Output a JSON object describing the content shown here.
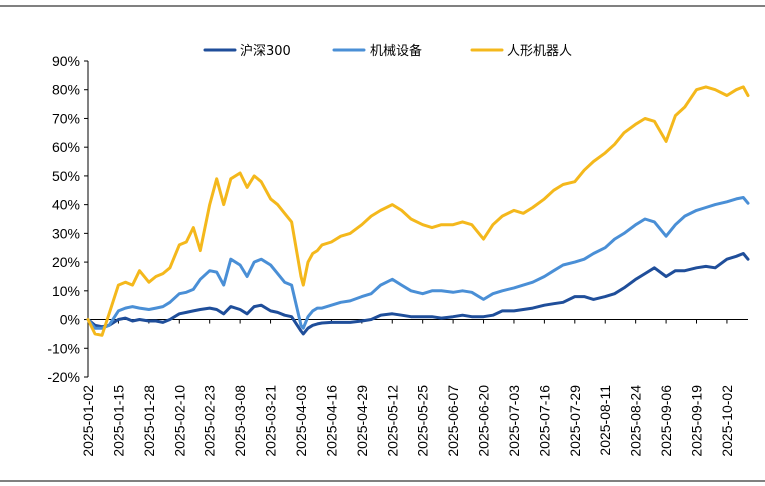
{
  "chart_data": {
    "type": "line",
    "ylim": [
      -20,
      90
    ],
    "y_ticks": [
      90,
      80,
      70,
      60,
      50,
      40,
      30,
      20,
      10,
      0,
      -10,
      -20
    ],
    "y_tick_labels": [
      "90%",
      "80%",
      "70%",
      "60%",
      "50%",
      "40%",
      "30%",
      "20%",
      "10%",
      "0%",
      "-10%",
      "-20%"
    ],
    "x_tick_labels": [
      "2025-01-02",
      "2025-01-15",
      "2025-01-28",
      "2025-02-10",
      "2025-02-23",
      "2025-03-08",
      "2025-03-21",
      "2025-04-03",
      "2025-04-16",
      "2025-04-29",
      "2025-05-12",
      "2025-05-25",
      "2025-06-07",
      "2025-06-20",
      "2025-07-03",
      "2025-07-16",
      "2025-07-29",
      "2025-08-11",
      "2025-08-24",
      "2025-09-06",
      "2025-09-19",
      "2025-10-02"
    ],
    "x_tick_days": [
      0,
      13,
      26,
      39,
      52,
      65,
      78,
      91,
      104,
      117,
      130,
      143,
      156,
      169,
      182,
      195,
      208,
      221,
      234,
      247,
      260,
      273
    ],
    "x_range_days": [
      0,
      282
    ],
    "legend": "top-center",
    "series": [
      {
        "name": "沪深300",
        "color": "#1F4E9A",
        "x": [
          0,
          3,
          6,
          9,
          13,
          16,
          19,
          22,
          26,
          29,
          32,
          35,
          39,
          42,
          45,
          48,
          52,
          55,
          58,
          61,
          65,
          68,
          71,
          74,
          78,
          81,
          84,
          87,
          91,
          92,
          94,
          96,
          98,
          100,
          104,
          108,
          112,
          117,
          121,
          125,
          130,
          134,
          138,
          143,
          147,
          151,
          156,
          160,
          164,
          169,
          173,
          177,
          182,
          186,
          190,
          195,
          199,
          203,
          208,
          212,
          216,
          221,
          225,
          229,
          234,
          238,
          242,
          247,
          251,
          255,
          260,
          264,
          268,
          273,
          277,
          280,
          282
        ],
        "values": [
          0,
          -2,
          -2.5,
          -2,
          0,
          0.5,
          -0.5,
          0,
          -0.5,
          -0.5,
          -1,
          0,
          2,
          2.5,
          3,
          3.5,
          4,
          3.5,
          2,
          4.5,
          3.5,
          2,
          4.5,
          5,
          3,
          2.5,
          1.5,
          1,
          -4,
          -5,
          -3,
          -2,
          -1.5,
          -1.2,
          -1,
          -1,
          -1,
          -0.5,
          0,
          1.5,
          2,
          1.5,
          1,
          1,
          1,
          0.5,
          1,
          1.5,
          1,
          1,
          1.5,
          3,
          3,
          3.5,
          4,
          5,
          5.5,
          6,
          8,
          8,
          7,
          8,
          9,
          11,
          14,
          16,
          18,
          15,
          17,
          17,
          18,
          18.5,
          18,
          21,
          22,
          23,
          21
        ]
      },
      {
        "name": "机械设备",
        "color": "#4A8FD6",
        "x": [
          0,
          3,
          6,
          9,
          13,
          16,
          19,
          22,
          26,
          29,
          32,
          35,
          39,
          42,
          45,
          48,
          52,
          55,
          58,
          61,
          65,
          68,
          71,
          74,
          78,
          81,
          84,
          87,
          91,
          92,
          94,
          96,
          98,
          100,
          104,
          108,
          112,
          117,
          121,
          125,
          130,
          134,
          138,
          143,
          147,
          151,
          156,
          160,
          164,
          169,
          173,
          177,
          182,
          186,
          190,
          195,
          199,
          203,
          208,
          212,
          216,
          221,
          225,
          229,
          234,
          238,
          242,
          247,
          251,
          255,
          260,
          264,
          268,
          273,
          277,
          280,
          282
        ],
        "values": [
          0,
          -3,
          -3,
          -2,
          3,
          4,
          4.5,
          4,
          3.5,
          4,
          4.5,
          6,
          9,
          9.5,
          10.5,
          14,
          17,
          16.5,
          12,
          21,
          19,
          15,
          20,
          21,
          19,
          16,
          13,
          12,
          -2,
          -3,
          1,
          3,
          4,
          4,
          5,
          6,
          6.5,
          8,
          9,
          12,
          14,
          12,
          10,
          9,
          10,
          10,
          9.5,
          10,
          9.5,
          7,
          9,
          10,
          11,
          12,
          13,
          15,
          17,
          19,
          20,
          21,
          23,
          25,
          28,
          30,
          33,
          35,
          34,
          29,
          33,
          36,
          38,
          39,
          40,
          41,
          42,
          42.5,
          40.5
        ]
      },
      {
        "name": "人形机器人",
        "color": "#F4B81C",
        "x": [
          0,
          3,
          6,
          9,
          13,
          16,
          19,
          22,
          26,
          29,
          32,
          35,
          39,
          42,
          45,
          48,
          52,
          55,
          58,
          61,
          65,
          68,
          71,
          74,
          78,
          81,
          84,
          87,
          91,
          92,
          94,
          96,
          98,
          100,
          104,
          108,
          112,
          117,
          121,
          125,
          130,
          134,
          138,
          143,
          147,
          151,
          156,
          160,
          164,
          169,
          173,
          177,
          182,
          186,
          190,
          195,
          199,
          203,
          208,
          212,
          216,
          221,
          225,
          229,
          234,
          238,
          242,
          247,
          251,
          255,
          260,
          264,
          268,
          273,
          277,
          280,
          282
        ],
        "values": [
          0,
          -5,
          -5.5,
          2,
          12,
          13,
          12,
          17,
          13,
          15,
          16,
          18,
          26,
          27,
          32,
          24,
          40,
          49,
          40,
          49,
          51,
          46,
          50,
          48,
          42,
          40,
          37,
          34,
          15,
          12,
          20,
          23,
          24,
          26,
          27,
          29,
          30,
          33,
          36,
          38,
          40,
          38,
          35,
          33,
          32,
          33,
          33,
          34,
          33,
          28,
          33,
          36,
          38,
          37,
          39,
          42,
          45,
          47,
          48,
          52,
          55,
          58,
          61,
          65,
          68,
          70,
          69,
          62,
          71,
          74,
          80,
          81,
          80,
          78,
          80,
          81,
          78
        ]
      }
    ]
  }
}
